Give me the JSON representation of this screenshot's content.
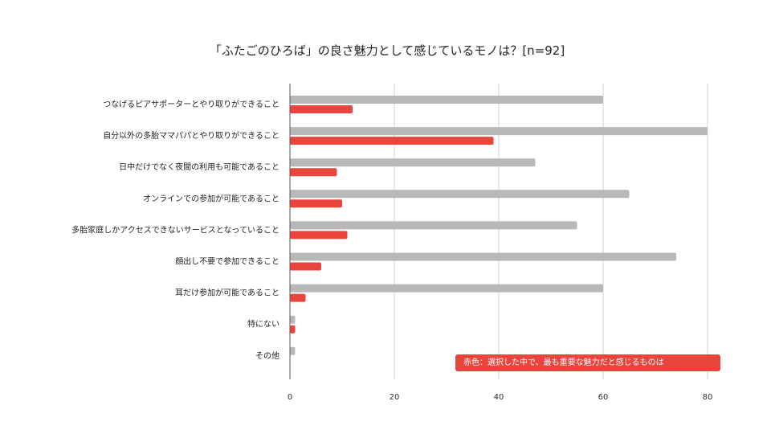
{
  "chart_data": {
    "type": "bar",
    "orientation": "horizontal",
    "title": "「ふたごのひろば」の良さ魅力として感じているモノは？[n=92]",
    "categories": [
      "つなげるピアサポーターとやり取りができること",
      "自分以外の多胎ママパパとやり取りができること",
      "日中だけでなく夜間の利用も可能であること",
      "オンラインでの参加が可能であること",
      "多胎家庭しかアクセスできないサービスとなっていること",
      "顔出し不要で参加できること",
      "耳だけ参加が可能であること",
      "特にない",
      "その他"
    ],
    "series": [
      {
        "color": "#b8b8b8",
        "values": [
          60,
          80,
          47,
          65,
          55,
          74,
          60,
          1,
          1
        ]
      },
      {
        "color": "#e8453c",
        "values": [
          12,
          39,
          9,
          10,
          11,
          6,
          3,
          1,
          0
        ]
      }
    ],
    "xlim": [
      0,
      80
    ],
    "xticks": [
      0,
      20,
      40,
      60,
      80
    ],
    "grid": true,
    "annotation": "赤色：選択した中で、最も重要な魅力だと感じるものは"
  }
}
